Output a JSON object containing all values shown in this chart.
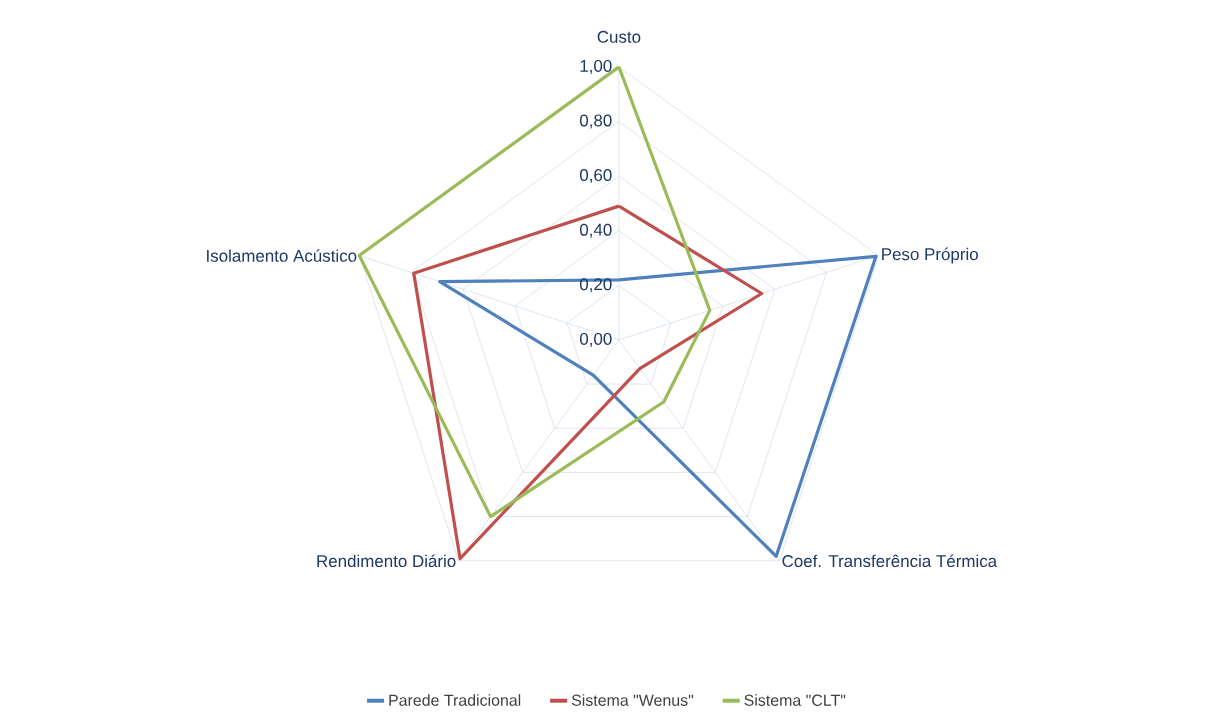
{
  "chart_data": {
    "type": "radar",
    "categories": [
      "Custo",
      "Peso Próprio",
      "Coef. Transferência Térmica",
      "Rendimento Diário",
      "Isolamento Acústico"
    ],
    "series": [
      {
        "name": "Parede Tradicional",
        "color": "#4f81bd",
        "values": [
          0.22,
          0.99,
          0.98,
          0.16,
          0.69
        ]
      },
      {
        "name": "Sistema \"Wenus\"",
        "color": "#c0504d",
        "values": [
          0.49,
          0.55,
          0.13,
          0.99,
          0.79
        ]
      },
      {
        "name": "Sistema \"CLT\"",
        "color": "#9bbb59",
        "values": [
          1.0,
          0.35,
          0.28,
          0.8,
          1.0
        ]
      }
    ],
    "ylim": [
      0,
      1
    ],
    "yticks": [
      {
        "value": 0,
        "label": "0,00"
      },
      {
        "value": 0.2,
        "label": "0,20"
      },
      {
        "value": 0.4,
        "label": "0,40"
      },
      {
        "value": 0.6,
        "label": "0,60"
      },
      {
        "value": 0.8,
        "label": "0,80"
      },
      {
        "value": 1,
        "label": "1,00"
      }
    ],
    "grid": true,
    "legend": "bottom",
    "marker": "none",
    "line_style": "solid"
  }
}
